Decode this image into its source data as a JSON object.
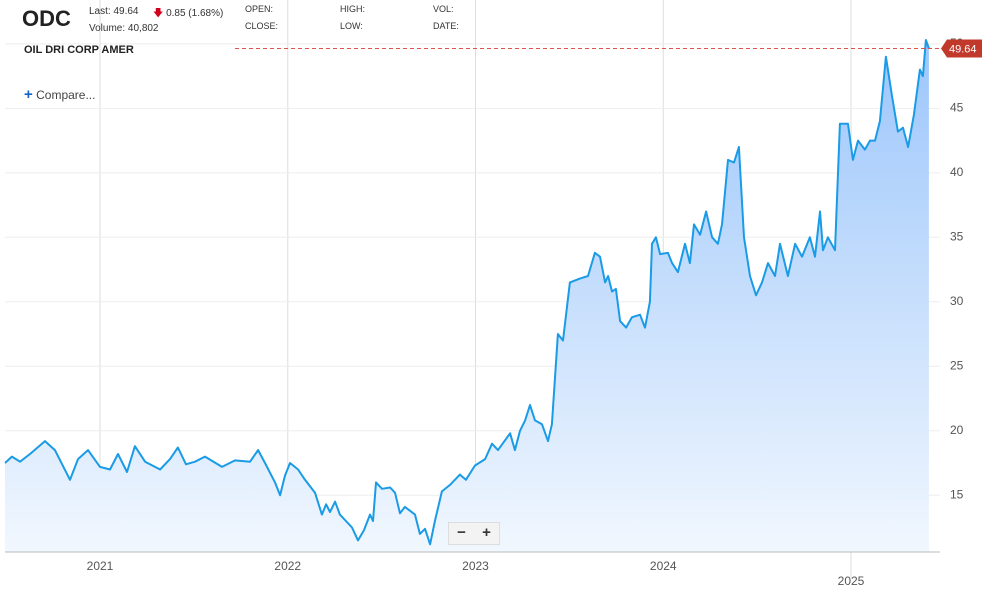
{
  "header": {
    "symbol": "ODC",
    "last": "Last: 49.64",
    "change": "0.85 (1.68%)",
    "volume": "Volume: 40,802",
    "open": "OPEN:",
    "high": "HIGH:",
    "vol": "VOL:",
    "close": "CLOSE:",
    "low": "LOW:",
    "date": "DATE:",
    "company": "OIL DRI CORP AMER",
    "compare": "Compare...",
    "zoom_out": "−",
    "zoom_in": "+"
  },
  "chart_data": {
    "type": "area",
    "color": "#1a9be6",
    "grid": true,
    "x": [
      2020.494,
      2020.531,
      2020.574,
      2020.627,
      2020.707,
      2020.76,
      2020.84,
      2020.883,
      2020.936,
      2021.0,
      2021.053,
      2021.096,
      2021.144,
      2021.186,
      2021.24,
      2021.32,
      2021.373,
      2021.415,
      2021.458,
      2021.506,
      2021.559,
      2021.65,
      2021.719,
      2021.799,
      2021.842,
      2021.879,
      2021.932,
      2021.959,
      2021.985,
      2022.012,
      2022.055,
      2022.092,
      2022.145,
      2022.182,
      2022.204,
      2022.225,
      2022.252,
      2022.278,
      2022.342,
      2022.374,
      2022.406,
      2022.438,
      2022.454,
      2022.47,
      2022.502,
      2022.545,
      2022.571,
      2022.598,
      2022.624,
      2022.678,
      2022.704,
      2022.731,
      2022.758,
      2022.784,
      2022.821,
      2022.864,
      2022.917,
      2022.949,
      2022.997,
      2023.051,
      2023.088,
      2023.12,
      2023.184,
      2023.21,
      2023.237,
      2023.264,
      2023.29,
      2023.317,
      2023.354,
      2023.386,
      2023.407,
      2023.439,
      2023.466,
      2023.503,
      2023.556,
      2023.599,
      2023.636,
      2023.663,
      2023.69,
      2023.706,
      2023.727,
      2023.748,
      2023.77,
      2023.802,
      2023.833,
      2023.876,
      2023.903,
      2023.929,
      2023.94,
      2023.961,
      2023.983,
      2024.025,
      2024.047,
      2024.078,
      2024.116,
      2024.142,
      2024.164,
      2024.196,
      2024.228,
      2024.26,
      2024.291,
      2024.313,
      2024.345,
      2024.377,
      2024.403,
      2024.43,
      2024.462,
      2024.494,
      2024.526,
      2024.558,
      2024.595,
      2024.622,
      2024.664,
      2024.702,
      2024.739,
      2024.781,
      2024.808,
      2024.835,
      2024.851,
      2024.877,
      2024.915,
      2024.941,
      2024.984,
      2025.01,
      2025.037,
      2025.074,
      2025.101,
      2025.128,
      2025.154,
      2025.186,
      2025.218,
      2025.25,
      2025.277,
      2025.304,
      2025.335,
      2025.367,
      2025.383,
      2025.399,
      2025.415
    ],
    "values": [
      17.5,
      18.0,
      17.6,
      18.2,
      19.2,
      18.5,
      16.2,
      17.8,
      18.5,
      17.2,
      17.0,
      18.2,
      16.8,
      18.8,
      17.6,
      17.0,
      17.8,
      18.7,
      17.4,
      17.6,
      18.0,
      17.2,
      17.7,
      17.6,
      18.5,
      17.5,
      16.0,
      15.0,
      16.5,
      17.5,
      17.0,
      16.2,
      15.2,
      13.5,
      14.3,
      13.7,
      14.5,
      13.5,
      12.5,
      11.5,
      12.3,
      13.5,
      13.0,
      16.0,
      15.5,
      15.6,
      15.2,
      13.6,
      14.1,
      13.5,
      12.0,
      12.4,
      11.2,
      13.0,
      15.3,
      15.8,
      16.6,
      16.2,
      17.3,
      17.8,
      19.0,
      18.5,
      19.8,
      18.5,
      20.0,
      20.8,
      22.0,
      20.8,
      20.5,
      19.2,
      20.5,
      27.5,
      27.0,
      31.5,
      31.8,
      32.0,
      33.8,
      33.5,
      31.5,
      32.0,
      30.8,
      31.0,
      28.5,
      28.0,
      28.8,
      29.0,
      28.0,
      30.0,
      34.5,
      35.0,
      33.7,
      33.8,
      33.0,
      32.3,
      34.5,
      33.0,
      36.0,
      35.2,
      37.0,
      35.0,
      34.5,
      36.0,
      41.0,
      40.8,
      42.0,
      35.0,
      32.0,
      30.5,
      31.5,
      33.0,
      32.0,
      34.5,
      32.0,
      34.5,
      33.5,
      35.0,
      33.5,
      37.0,
      34.0,
      35.0,
      34.0,
      43.8,
      43.8,
      41.0,
      42.5,
      41.8,
      42.5,
      42.5,
      44.0,
      49.0,
      46.0,
      43.2,
      43.5,
      42.0,
      44.5,
      48.0,
      47.5,
      50.3,
      49.64
    ],
    "xlim": [
      2020.494,
      2025.474
    ],
    "xticks": [
      2021,
      2022,
      2023,
      2024,
      2025
    ],
    "ylim": [
      10.6,
      53.4
    ],
    "yticks": [
      15,
      20,
      25,
      30,
      35,
      40,
      45,
      50
    ]
  }
}
